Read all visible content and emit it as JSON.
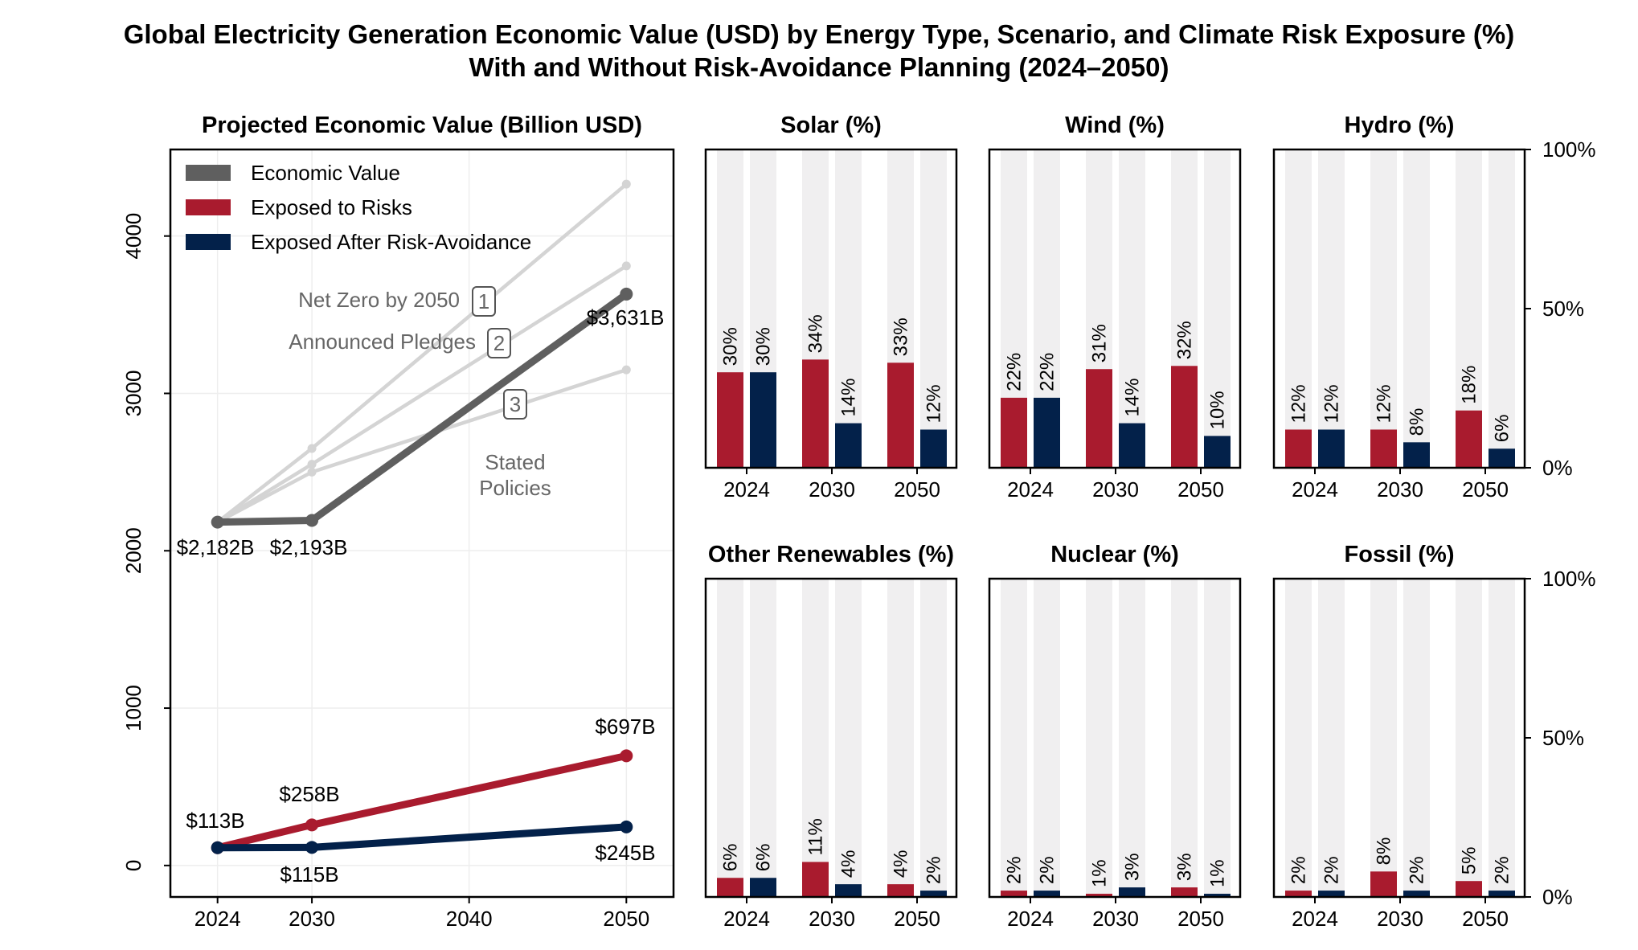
{
  "title": {
    "line1": "Global Electricity Generation Economic Value (USD) by Energy Type, Scenario, and Climate Risk Exposure (%)",
    "line2": "With and Without Risk-Avoidance Planning (2024–2050)"
  },
  "colors": {
    "economic": "#5f5f5f",
    "exposed": "#a91b2e",
    "avoided": "#03214a",
    "scenario": "#d4d4d4",
    "barbg": "#f0eff0"
  },
  "chart_data": [
    {
      "type": "line",
      "title": "Projected Economic Value (Billion USD)",
      "xlabel": "",
      "ylabel": "",
      "x": [
        2024,
        2030,
        2050
      ],
      "xlim": [
        2021,
        2053
      ],
      "ylim": [
        -200,
        4550
      ],
      "xticks": [
        "2024",
        "2030",
        "2040",
        "2050"
      ],
      "yticks": [
        "0",
        "1000",
        "2000",
        "3000",
        "4000"
      ],
      "grid": true,
      "legend_position": "top-left",
      "series": [
        {
          "name": "Economic Value",
          "values": [
            2182,
            2193,
            3631
          ],
          "labels": [
            "$2,182B",
            "$2,193B",
            "$3,631B"
          ]
        },
        {
          "name": "Exposed to Risks",
          "values": [
            113,
            258,
            697
          ],
          "labels": [
            "$113B",
            "$258B",
            "$697B"
          ]
        },
        {
          "name": "Exposed After Risk-Avoidance",
          "values": [
            113,
            115,
            245
          ],
          "labels": [
            "",
            "$115B",
            "$245B"
          ]
        }
      ],
      "scenarios": [
        {
          "name": "Net Zero by 2050",
          "marker": "1",
          "values": [
            2182,
            2650,
            4330
          ]
        },
        {
          "name": "Announced Pledges",
          "marker": "2",
          "values": [
            2182,
            2550,
            3810
          ]
        },
        {
          "name": "Stated Policies",
          "marker": "3",
          "values": [
            2182,
            2500,
            3150
          ]
        }
      ],
      "scenario_names": {
        "s1": "Net Zero by 2050",
        "s2": "Announced Pledges",
        "s3_line1": "Stated",
        "s3_line2": "Policies"
      }
    },
    {
      "type": "bar",
      "ylim": [
        0,
        100
      ],
      "yticks": [
        "0%",
        "50%",
        "100%"
      ],
      "categories": [
        "2024",
        "2030",
        "2050"
      ],
      "series_names": [
        "Exposed to Risks",
        "Exposed After Risk-Avoidance"
      ],
      "panels": [
        {
          "title": "Solar (%)",
          "exposed": [
            30,
            34,
            33
          ],
          "avoided": [
            30,
            14,
            12
          ]
        },
        {
          "title": "Wind (%)",
          "exposed": [
            22,
            31,
            32
          ],
          "avoided": [
            22,
            14,
            10
          ]
        },
        {
          "title": "Hydro (%)",
          "exposed": [
            12,
            12,
            18
          ],
          "avoided": [
            12,
            8,
            6
          ]
        },
        {
          "title": "Other Renewables (%)",
          "exposed": [
            6,
            11,
            4
          ],
          "avoided": [
            6,
            4,
            2
          ]
        },
        {
          "title": "Nuclear (%)",
          "exposed": [
            2,
            1,
            3
          ],
          "avoided": [
            2,
            3,
            1
          ]
        },
        {
          "title": "Fossil (%)",
          "exposed": [
            2,
            8,
            5
          ],
          "avoided": [
            2,
            2,
            2
          ]
        }
      ]
    }
  ]
}
